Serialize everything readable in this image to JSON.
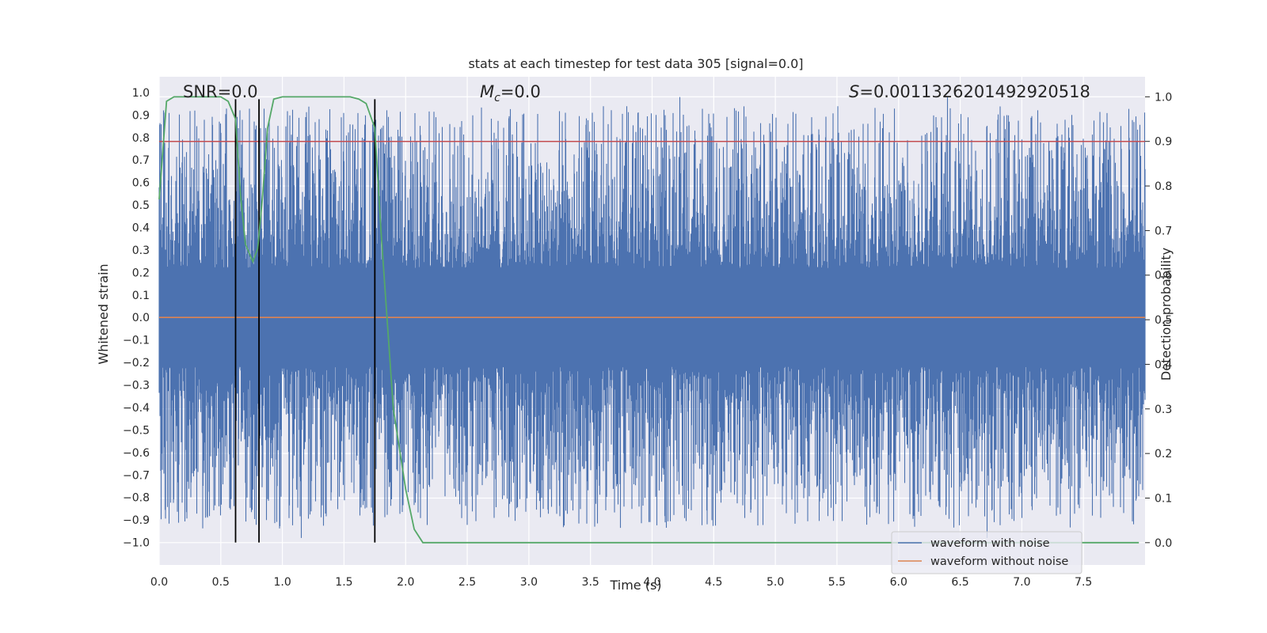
{
  "chart_data": {
    "type": "line",
    "title": "stats at each timestep for test data 305 [signal=0.0]",
    "xlabel": "Time (s)",
    "ylabel": "Whitened strain",
    "y2label": "Detection probability",
    "xlim": [
      0.0,
      8.0
    ],
    "ylim": [
      -1.1,
      1.07
    ],
    "y2lim": [
      -0.05,
      1.045
    ],
    "x_ticks": [
      "0.0",
      "0.5",
      "1.0",
      "1.5",
      "2.0",
      "2.5",
      "3.0",
      "3.5",
      "4.0",
      "4.5",
      "5.0",
      "5.5",
      "6.0",
      "6.5",
      "7.0",
      "7.5"
    ],
    "x_tick_values": [
      0.0,
      0.5,
      1.0,
      1.5,
      2.0,
      2.5,
      3.0,
      3.5,
      4.0,
      4.5,
      5.0,
      5.5,
      6.0,
      6.5,
      7.0,
      7.5
    ],
    "y_ticks": [
      "1.0",
      "0.9",
      "0.8",
      "0.7",
      "0.6",
      "0.5",
      "0.4",
      "0.3",
      "0.2",
      "0.1",
      "0.0",
      "−0.1",
      "−0.2",
      "−0.3",
      "−0.4",
      "−0.5",
      "−0.6",
      "−0.7",
      "−0.8",
      "−0.9",
      "−1.0"
    ],
    "y_tick_values": [
      1.0,
      0.9,
      0.8,
      0.7,
      0.6,
      0.5,
      0.4,
      0.3,
      0.2,
      0.1,
      0.0,
      -0.1,
      -0.2,
      -0.3,
      -0.4,
      -0.5,
      -0.6,
      -0.7,
      -0.8,
      -0.9,
      -1.0
    ],
    "y2_ticks": [
      "1.0",
      "0.9",
      "0.8",
      "0.7",
      "0.6",
      "0.5",
      "0.4",
      "0.3",
      "0.2",
      "0.1",
      "0.0"
    ],
    "y2_tick_values": [
      1.0,
      0.9,
      0.8,
      0.7,
      0.6,
      0.5,
      0.4,
      0.3,
      0.2,
      0.1,
      0.0
    ],
    "annotations": {
      "snr": "SNR=0.0",
      "mc_symbol": "M",
      "mc_sub": "c",
      "mc_value": "=0.0",
      "s_symbol": "S",
      "s_value": "=0.0011326201492920518"
    },
    "series": [
      {
        "name": "waveform with noise",
        "color": "#4c72b0",
        "description": "dense whitened strain noise, roughly uniform amplitude between about -0.9 and 0.9"
      },
      {
        "name": "waveform without noise",
        "color": "#dd8452",
        "values_constant": 0.0
      },
      {
        "name": "detection probability",
        "axis": "right",
        "color": "#55a868",
        "x": [
          0.0,
          0.06,
          0.12,
          0.25,
          0.4,
          0.5,
          0.56,
          0.62,
          0.66,
          0.7,
          0.76,
          0.8,
          0.84,
          0.88,
          0.93,
          1.0,
          1.2,
          1.4,
          1.55,
          1.62,
          1.68,
          1.75,
          1.8,
          1.85,
          1.9,
          2.0,
          2.07,
          2.14,
          2.2,
          2.5,
          3.5,
          5.0,
          6.5,
          7.7,
          7.95
        ],
        "values": [
          0.77,
          0.99,
          1.0,
          1.0,
          1.0,
          1.0,
          0.99,
          0.95,
          0.78,
          0.67,
          0.63,
          0.66,
          0.78,
          0.93,
          0.995,
          1.0,
          1.0,
          1.0,
          1.0,
          0.995,
          0.985,
          0.93,
          0.7,
          0.5,
          0.3,
          0.12,
          0.03,
          0.0,
          0.0,
          0.0,
          0.0,
          0.0,
          0.0,
          0.0,
          0.0
        ]
      }
    ],
    "threshold": {
      "value": 0.9,
      "axis": "right",
      "color": "#c44e52"
    },
    "event_lines": {
      "x": [
        0.62,
        0.81,
        1.75
      ],
      "y_range": [
        -1.0,
        0.97
      ],
      "color": "#000000"
    },
    "legend": {
      "placement": "bottom-right",
      "entries": [
        "waveform with noise",
        "waveform without noise"
      ]
    },
    "background": "#eaeaf2",
    "grid": true
  }
}
